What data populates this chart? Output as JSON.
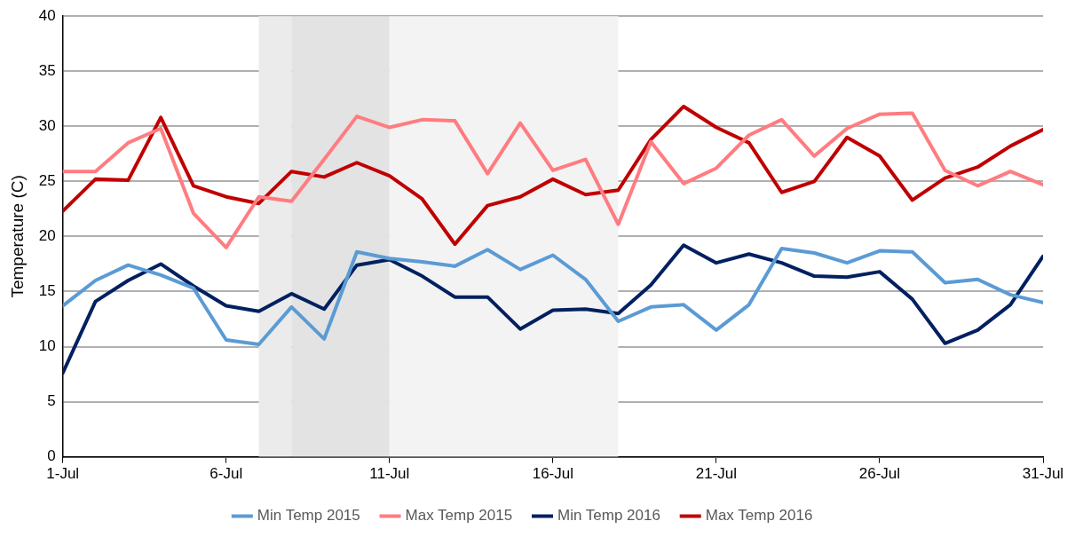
{
  "chart_data": {
    "type": "line",
    "ylabel": "Temperature (C)",
    "x": [
      "--07-01",
      "--07-02",
      "--07-03",
      "--07-04",
      "--07-05",
      "--07-06",
      "--07-07",
      "--07-08",
      "--07-09",
      "--07-10",
      "--07-11",
      "--07-12",
      "--07-13",
      "--07-14",
      "--07-15",
      "--07-16",
      "--07-17",
      "--07-18",
      "--07-19",
      "--07-20",
      "--07-21",
      "--07-22",
      "--07-23",
      "--07-24",
      "--07-25",
      "--07-26",
      "--07-27",
      "--07-28",
      "--07-29",
      "--07-30",
      "--07-31"
    ],
    "xlim": [
      "--07-01",
      "--07-31"
    ],
    "xticks": [
      {
        "value": "--07-01",
        "label": "1-Jul"
      },
      {
        "value": "--07-06",
        "label": "6-Jul"
      },
      {
        "value": "--07-11",
        "label": "11-Jul"
      },
      {
        "value": "--07-16",
        "label": "16-Jul"
      },
      {
        "value": "--07-21",
        "label": "21-Jul"
      },
      {
        "value": "--07-26",
        "label": "26-Jul"
      },
      {
        "value": "--07-31",
        "label": "31-Jul"
      }
    ],
    "ylim": [
      0,
      40
    ],
    "yticks": [
      0,
      5,
      10,
      15,
      20,
      25,
      30,
      35,
      40
    ],
    "grid": "y",
    "legend": "bottom",
    "marker": "none",
    "line_style": "solid",
    "bands": [
      {
        "axis": "x",
        "from": "--07-07",
        "to": "--07-08",
        "color": "#ebebeb"
      },
      {
        "axis": "x",
        "from": "--07-08",
        "to": "--07-11",
        "color": "#e3e3e3"
      },
      {
        "axis": "x",
        "from": "--07-11",
        "to": "--07-18",
        "color": "#f3f3f3"
      }
    ],
    "series": [
      {
        "name": "Min Temp 2015",
        "color": "#5b9bd5",
        "values": [
          13.7,
          16.0,
          17.4,
          16.5,
          15.3,
          10.6,
          10.2,
          13.6,
          10.7,
          18.6,
          18.0,
          17.7,
          17.3,
          18.8,
          17.0,
          18.3,
          16.1,
          12.3,
          13.6,
          13.8,
          11.5,
          13.8,
          18.9,
          18.5,
          17.6,
          18.7,
          18.6,
          15.8,
          16.1,
          14.7,
          14.0
        ]
      },
      {
        "name": "Max Temp 2015",
        "color": "#ff7c80",
        "values": [
          25.9,
          25.9,
          28.5,
          29.8,
          22.1,
          19.0,
          23.6,
          23.2,
          27.0,
          30.9,
          29.9,
          30.6,
          30.5,
          25.7,
          30.3,
          26.0,
          27.0,
          21.1,
          28.6,
          24.8,
          26.2,
          29.2,
          30.6,
          27.3,
          29.8,
          31.1,
          31.2,
          26.0,
          24.6,
          25.9,
          24.7
        ]
      },
      {
        "name": "Min Temp 2016",
        "color": "#002060",
        "values": [
          7.6,
          14.1,
          16.0,
          17.5,
          15.5,
          13.7,
          13.2,
          14.8,
          13.4,
          17.4,
          17.9,
          16.4,
          14.5,
          14.5,
          11.6,
          13.3,
          13.4,
          13.0,
          15.6,
          19.2,
          17.6,
          18.4,
          17.6,
          16.4,
          16.3,
          16.8,
          14.3,
          10.3,
          11.5,
          13.8,
          18.2
        ]
      },
      {
        "name": "Max Temp 2016",
        "color": "#c00000",
        "values": [
          22.3,
          25.2,
          25.1,
          30.8,
          24.6,
          23.6,
          23.0,
          25.9,
          25.4,
          26.7,
          25.5,
          23.4,
          19.3,
          22.8,
          23.6,
          25.2,
          23.8,
          24.2,
          28.8,
          31.8,
          29.9,
          28.5,
          24.0,
          25.0,
          29.0,
          27.3,
          23.3,
          25.3,
          26.3,
          28.2,
          29.7
        ]
      }
    ]
  }
}
